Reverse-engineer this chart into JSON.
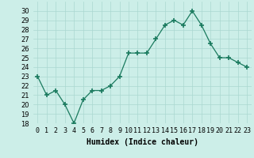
{
  "x": [
    0,
    1,
    2,
    3,
    4,
    5,
    6,
    7,
    8,
    9,
    10,
    11,
    12,
    13,
    14,
    15,
    16,
    17,
    18,
    19,
    20,
    21,
    22,
    23
  ],
  "y": [
    23,
    21,
    21.5,
    20,
    18,
    20.5,
    21.5,
    21.5,
    22,
    23,
    25.5,
    25.5,
    25.5,
    27,
    28.5,
    29,
    28.5,
    30,
    28.5,
    26.5,
    25,
    25,
    24.5,
    24
  ],
  "line_color": "#1a7a5e",
  "marker_color": "#1a7a5e",
  "bg_color": "#cceee8",
  "grid_color": "#aad8d0",
  "xlabel": "Humidex (Indice chaleur)",
  "ylim": [
    18,
    31
  ],
  "xlim": [
    -0.5,
    23.5
  ],
  "yticks": [
    18,
    19,
    20,
    21,
    22,
    23,
    24,
    25,
    26,
    27,
    28,
    29,
    30
  ],
  "xtick_labels": [
    "0",
    "1",
    "2",
    "3",
    "4",
    "5",
    "6",
    "7",
    "8",
    "9",
    "10",
    "11",
    "12",
    "13",
    "14",
    "15",
    "16",
    "17",
    "18",
    "19",
    "20",
    "21",
    "22",
    "23"
  ],
  "label_fontsize": 7,
  "tick_fontsize": 6
}
